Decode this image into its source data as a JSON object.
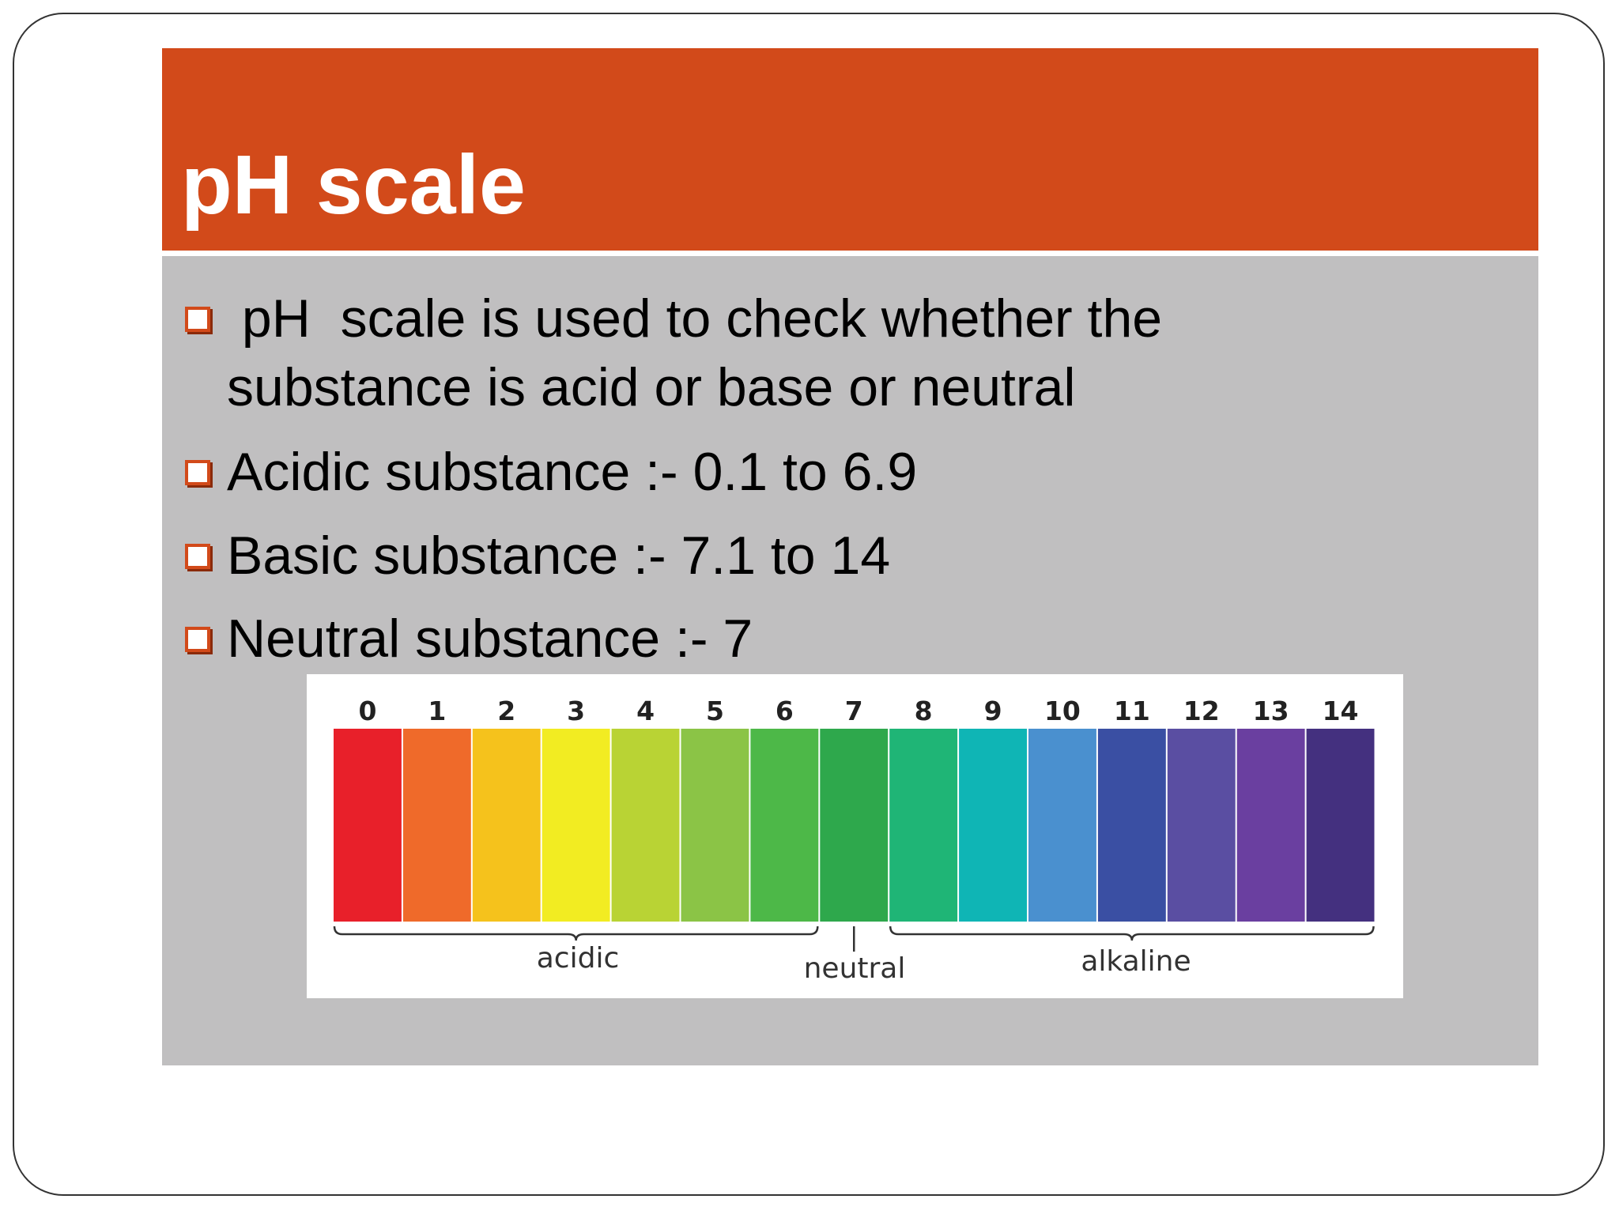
{
  "slide": {
    "title": "pH scale",
    "bullets": [
      " pH  scale is used to check whether the substance is acid or base or neutral",
      "Acidic substance :- 0.1 to 6.9",
      "Basic substance :- 7.1 to 14",
      "Neutral substance :- 7"
    ]
  },
  "scale": {
    "levels": [
      {
        "label": "0",
        "color": "#e8202a"
      },
      {
        "label": "1",
        "color": "#ef6a2a"
      },
      {
        "label": "2",
        "color": "#f5c21c"
      },
      {
        "label": "3",
        "color": "#f2ec22"
      },
      {
        "label": "4",
        "color": "#b9d334"
      },
      {
        "label": "5",
        "color": "#8bc446"
      },
      {
        "label": "6",
        "color": "#4db848"
      },
      {
        "label": "7",
        "color": "#2ea84c"
      },
      {
        "label": "8",
        "color": "#1fb576"
      },
      {
        "label": "9",
        "color": "#0fb5b5"
      },
      {
        "label": "10",
        "color": "#4a90cf"
      },
      {
        "label": "11",
        "color": "#3a4fa3"
      },
      {
        "label": "12",
        "color": "#5a4ea2"
      },
      {
        "label": "13",
        "color": "#6a3fa0"
      },
      {
        "label": "14",
        "color": "#44307f"
      }
    ],
    "range_labels": [
      "acidic",
      "neutral",
      "alkaline"
    ]
  }
}
